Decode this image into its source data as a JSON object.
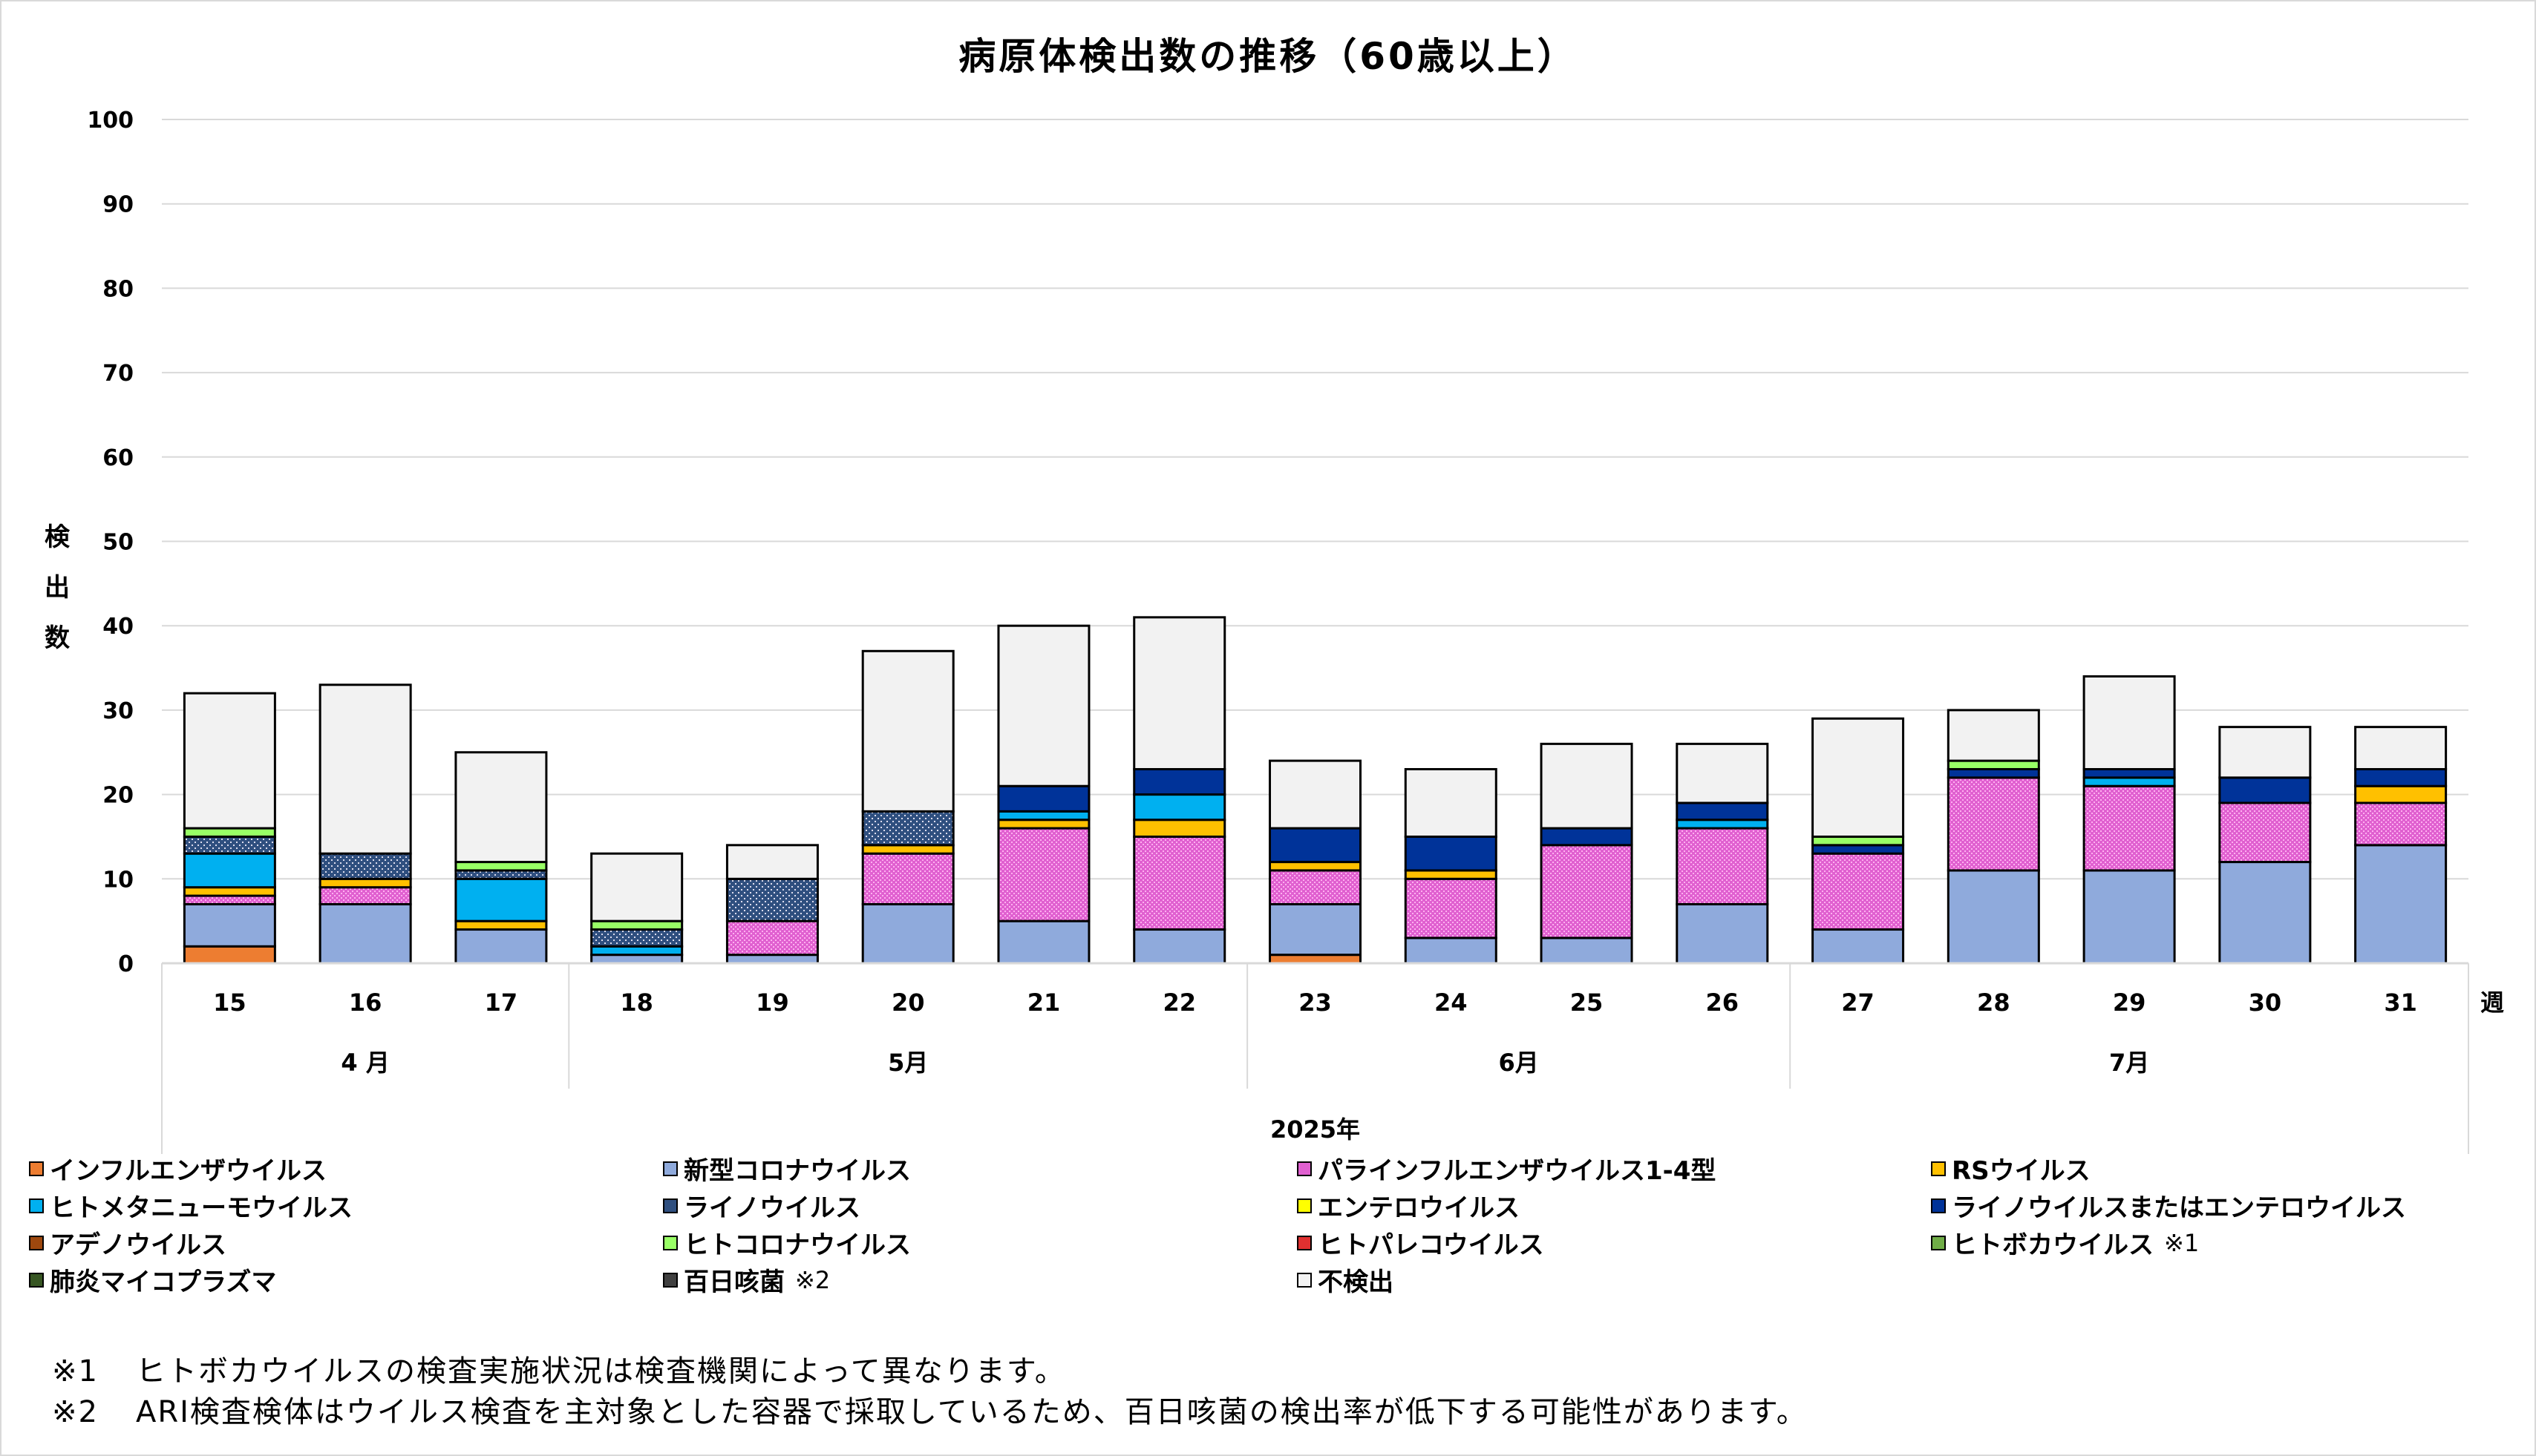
{
  "chart_data": {
    "type": "bar",
    "stacked": true,
    "title": "病原体検出数の推移（60歳以上）",
    "ylabel": "検出数",
    "xlabel": "2025年",
    "x_unit_label": "週",
    "ylim": [
      0,
      100
    ],
    "yticks": [
      0,
      10,
      20,
      30,
      40,
      50,
      60,
      70,
      80,
      90,
      100
    ],
    "grid": true,
    "legend_position": "bottom",
    "categories": [
      "15",
      "16",
      "17",
      "18",
      "19",
      "20",
      "21",
      "22",
      "23",
      "24",
      "25",
      "26",
      "27",
      "28",
      "29",
      "30",
      "31"
    ],
    "month_groups": [
      {
        "label": "4 月",
        "weeks": 3
      },
      {
        "label": "5月",
        "weeks": 5
      },
      {
        "label": "6月",
        "weeks": 4
      },
      {
        "label": "7月",
        "weeks": 5
      }
    ],
    "series": [
      {
        "name": "インフルエンザウイルス",
        "color": "#ed7d31",
        "values": [
          2,
          0,
          0,
          0,
          0,
          0,
          0,
          0,
          1,
          0,
          0,
          0,
          0,
          0,
          0,
          0,
          0
        ]
      },
      {
        "name": "新型コロナウイルス",
        "color": "#8faadc",
        "values": [
          5,
          7,
          4,
          1,
          1,
          7,
          5,
          4,
          6,
          3,
          3,
          7,
          4,
          11,
          11,
          12,
          14
        ]
      },
      {
        "name": "パラインフルエンザウイルス1-4型",
        "color": "#e060d0",
        "pattern": "hatch",
        "values": [
          1,
          2,
          0,
          0,
          4,
          6,
          11,
          11,
          4,
          7,
          11,
          9,
          9,
          11,
          10,
          7,
          5
        ]
      },
      {
        "name": "RSウイルス",
        "color": "#ffc000",
        "values": [
          1,
          1,
          1,
          0,
          0,
          1,
          1,
          2,
          1,
          1,
          0,
          0,
          0,
          0,
          0,
          0,
          2
        ]
      },
      {
        "name": "ヒトメタニューモウイルス",
        "color": "#00b0f0",
        "values": [
          4,
          0,
          5,
          1,
          0,
          0,
          1,
          3,
          0,
          0,
          0,
          1,
          0,
          0,
          1,
          0,
          0
        ]
      },
      {
        "name": "ライノウイルス",
        "color": "#2f4f7f",
        "pattern": "dots",
        "values": [
          2,
          3,
          1,
          2,
          5,
          4,
          0,
          0,
          0,
          0,
          0,
          0,
          0,
          0,
          0,
          0,
          0
        ]
      },
      {
        "name": "エンテロウイルス",
        "color": "#ffff00",
        "values": [
          0,
          0,
          0,
          0,
          0,
          0,
          0,
          0,
          0,
          0,
          0,
          0,
          0,
          0,
          0,
          0,
          0
        ]
      },
      {
        "name": "ライノウイルスまたはエンテロウイルス",
        "color": "#003399",
        "values": [
          0,
          0,
          0,
          0,
          0,
          0,
          3,
          3,
          4,
          4,
          2,
          2,
          1,
          1,
          1,
          3,
          2
        ]
      },
      {
        "name": "アデノウイルス",
        "color": "#9e480e",
        "values": [
          0,
          0,
          0,
          0,
          0,
          0,
          0,
          0,
          0,
          0,
          0,
          0,
          0,
          0,
          0,
          0,
          0
        ]
      },
      {
        "name": "ヒトコロナウイルス",
        "color": "#99ff66",
        "values": [
          1,
          0,
          1,
          1,
          0,
          0,
          0,
          0,
          0,
          0,
          0,
          0,
          1,
          1,
          0,
          0,
          0
        ]
      },
      {
        "name": "ヒトパレコウイルス",
        "color": "#e03030",
        "pattern": "hatch",
        "values": [
          0,
          0,
          0,
          0,
          0,
          0,
          0,
          0,
          0,
          0,
          0,
          0,
          0,
          0,
          0,
          0,
          0
        ]
      },
      {
        "name": "ヒトボカウイルス",
        "note": "※1",
        "color": "#70ad47",
        "values": [
          0,
          0,
          0,
          0,
          0,
          0,
          0,
          0,
          0,
          0,
          0,
          0,
          0,
          0,
          0,
          0,
          0
        ]
      },
      {
        "name": "肺炎マイコプラズマ",
        "color": "#375623",
        "values": [
          0,
          0,
          0,
          0,
          0,
          0,
          0,
          0,
          0,
          0,
          0,
          0,
          0,
          0,
          0,
          0,
          0
        ]
      },
      {
        "name": "百日咳菌",
        "note": "※2",
        "color": "#404040",
        "values": [
          0,
          0,
          0,
          0,
          0,
          0,
          0,
          0,
          0,
          0,
          0,
          0,
          0,
          0,
          0,
          0,
          0
        ]
      },
      {
        "name": "不検出",
        "color": "#f2f2f2",
        "values": [
          16,
          20,
          13,
          8,
          4,
          19,
          19,
          18,
          8,
          8,
          10,
          7,
          14,
          6,
          11,
          6,
          5
        ]
      }
    ]
  },
  "footnotes": [
    {
      "mark": "※1",
      "text": "ヒトボカウイルスの検査実施状況は検査機関によって異なります。"
    },
    {
      "mark": "※2",
      "text": "ARI検査検体はウイルス検査を主対象とした容器で採取しているため、百日咳菌の検出率が低下する可能性があります。"
    }
  ]
}
